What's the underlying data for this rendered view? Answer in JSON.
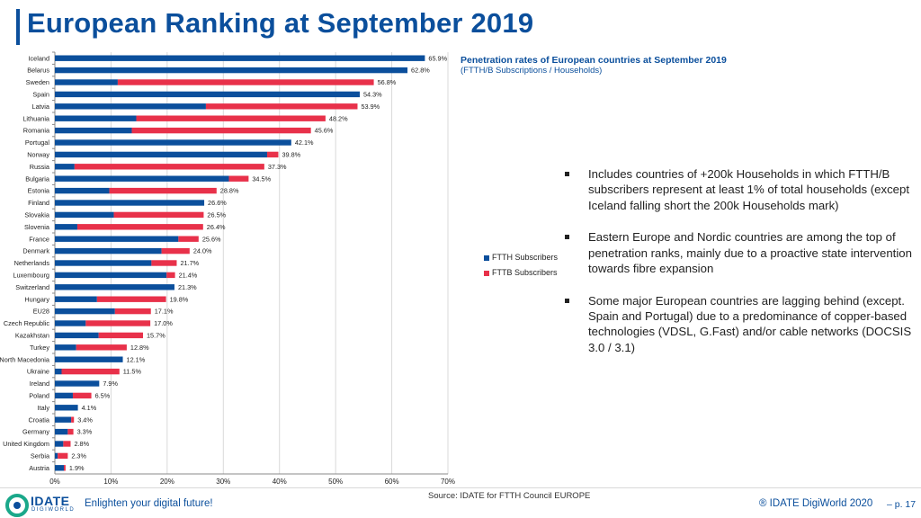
{
  "header": {
    "title": "European Ranking at September 2019"
  },
  "chart_data": {
    "type": "bar",
    "orientation": "horizontal",
    "stacked": true,
    "title": "Penetration rates of European countries at September 2019",
    "subtitle": "(FTTH/B Subscriptions / Households)",
    "categories": [
      "Iceland",
      "Belarus",
      "Sweden",
      "Spain",
      "Latvia",
      "Lithuania",
      "Romania",
      "Portugal",
      "Norway",
      "Russia",
      "Bulgaria",
      "Estonia",
      "Finland",
      "Slovakia",
      "Slovenia",
      "France",
      "Denmark",
      "Netherlands",
      "Luxembourg",
      "Switzerland",
      "Hungary",
      "EU28",
      "Czech Republic",
      "Kazakhstan",
      "Turkey",
      "North Macedonia",
      "Ukraine",
      "Ireland",
      "Poland",
      "Italy",
      "Croatia",
      "Germany",
      "United Kingdom",
      "Serbia",
      "Austria"
    ],
    "series": [
      {
        "name": "FTTH Subscribers",
        "color": "#0b4f9c",
        "values": [
          65.9,
          62.8,
          11.2,
          54.3,
          26.9,
          14.5,
          13.7,
          42.1,
          37.8,
          3.5,
          31.0,
          9.7,
          26.6,
          10.5,
          4.0,
          22.0,
          19.0,
          17.2,
          19.9,
          21.3,
          7.5,
          10.7,
          5.5,
          7.8,
          3.8,
          12.1,
          1.2,
          7.9,
          3.2,
          4.1,
          2.9,
          2.3,
          1.5,
          0.5,
          1.6
        ]
      },
      {
        "name": "FTTB Subscribers",
        "color": "#e8314a",
        "values": [
          0,
          0,
          45.6,
          0,
          27.0,
          33.7,
          31.9,
          0,
          2.0,
          33.8,
          3.5,
          19.1,
          0,
          16.0,
          22.4,
          3.6,
          5.0,
          4.5,
          1.5,
          0,
          12.3,
          6.4,
          11.5,
          7.9,
          9.0,
          0,
          10.3,
          0,
          3.3,
          0,
          0.5,
          1.0,
          1.3,
          1.8,
          0.3
        ]
      }
    ],
    "data_labels": [
      "65.9%",
      "62.8%",
      "56.8%",
      "54.3%",
      "53.9%",
      "48.2%",
      "45.6%",
      "42.1%",
      "39.8%",
      "37.3%",
      "34.5%",
      "28.8%",
      "26.6%",
      "26.5%",
      "26.4%",
      "25.6%",
      "24.0%",
      "21.7%",
      "21.4%",
      "21.3%",
      "19.8%",
      "17.1%",
      "17.0%",
      "15.7%",
      "12.8%",
      "12.1%",
      "11.5%",
      "7.9%",
      "6.5%",
      "4.1%",
      "3.4%",
      "3.3%",
      "2.8%",
      "2.3%",
      "1.9%"
    ],
    "x_ticks": [
      "0%",
      "10%",
      "20%",
      "30%",
      "40%",
      "50%",
      "60%",
      "70%"
    ],
    "xlim": [
      0,
      70
    ],
    "grid": true,
    "legend_position": "right"
  },
  "legend": {
    "ftth": "FTTH Subscribers",
    "fttb": "FTTB Subscribers"
  },
  "bullets": [
    "Includes countries of +200k Households in which FTTH/B subscribers represent at least 1% of total households (except Iceland falling short the 200k Households mark)",
    "Eastern Europe and Nordic countries are among the top of penetration ranks, mainly due to a proactive state intervention towards fibre expansion",
    "Some major European countries are lagging behind (except. Spain and Portugal) due to a predominance of copper-based technologies (VDSL, G.Fast) and/or cable networks (DOCSIS 3.0 / 3.1)"
  ],
  "footer": {
    "source": "Source: IDATE for FTTH Council EUROPE",
    "logo_text": "IDATE",
    "logo_sub": "DIGIWORLD",
    "tagline": "Enlighten your digital future!",
    "copyright": "® IDATE DigiWorld 2020",
    "page": "– p. 17"
  }
}
